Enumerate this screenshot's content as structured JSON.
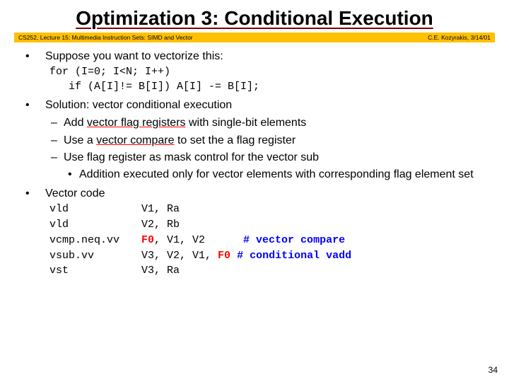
{
  "title": "Optimization 3: Conditional Execution",
  "banner": {
    "left": "CS252, Lecture 15: Multimedia Instruction Sets: SIMD and Vector",
    "right": "C.E. Kozyrakis, 3/14/01"
  },
  "b1": {
    "text": "Suppose you want to vectorize this:",
    "code1": "for (I=0; I<N; I++)",
    "code2": "   if (A[I]!= B[I]) A[I] -= B[I];"
  },
  "b2": {
    "text": "Solution: vector conditional execution",
    "s1a": "Add ",
    "s1u": "vector flag registers",
    "s1b": " with single-bit elements",
    "s2a": "Use a ",
    "s2u": "vector compare",
    "s2b": " to set the a flag register",
    "s3": "Use flag register as mask control for the vector sub",
    "s3sub": "Addition executed only for vector elements with corresponding flag element set"
  },
  "b3": {
    "text": "Vector code",
    "r1c1": "vld",
    "r1c2a": "V1, Ra",
    "r2c1": "vld",
    "r2c2a": "V2, Rb",
    "r3c1": "vcmp.neq.vv",
    "r3red": "F0",
    "r3rest": ", V1, V2      ",
    "r3cmt": "# vector compare",
    "r4c1": "vsub.vv",
    "r4a": "V3, V2, V1, ",
    "r4red": "F0",
    "r4sp": " ",
    "r4cmt": "# conditional vadd",
    "r5c1": "vst",
    "r5c2a": "V3, Ra"
  },
  "pagenum": "34",
  "colors": {
    "banner_bg": "#ffc000",
    "underline": "#800000",
    "red": "#ff0000",
    "blue": "#0000ff"
  }
}
